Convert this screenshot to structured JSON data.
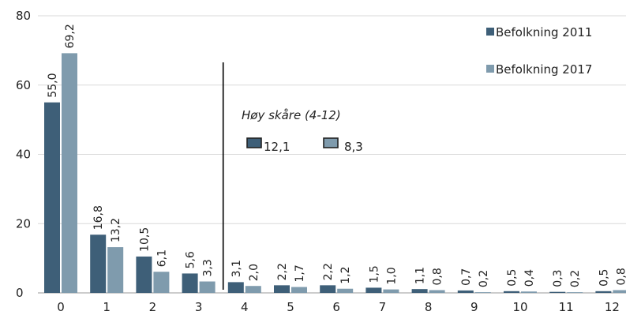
{
  "chart_data": {
    "type": "bar",
    "title": "",
    "xlabel": "",
    "ylabel": "",
    "ylim": [
      0,
      80
    ],
    "yticks": [
      0,
      20,
      40,
      60,
      80
    ],
    "grid": true,
    "legend_position": "top-right",
    "categories": [
      "0",
      "1",
      "2",
      "3",
      "4",
      "5",
      "6",
      "7",
      "8",
      "9",
      "10",
      "11",
      "12"
    ],
    "series": [
      {
        "name": "Befolkning 2011",
        "color": "#3e5f78",
        "values": [
          55.0,
          16.8,
          10.5,
          5.6,
          3.1,
          2.2,
          2.2,
          1.5,
          1.1,
          0.7,
          0.5,
          0.3,
          0.5
        ],
        "labels": [
          "55,0",
          "16,8",
          "10,5",
          "5,6",
          "3,1",
          "2,2",
          "2,2",
          "1,5",
          "1,1",
          "0,7",
          "0,5",
          "0,3",
          "0,5"
        ]
      },
      {
        "name": "Befolkning 2017",
        "color": "#7f9bad",
        "values": [
          69.2,
          13.2,
          6.1,
          3.3,
          2.0,
          1.7,
          1.2,
          1.0,
          0.8,
          0.2,
          0.4,
          0.2,
          0.8
        ],
        "labels": [
          "69,2",
          "13,2",
          "6,1",
          "3,3",
          "2,0",
          "1,7",
          "1,2",
          "1,0",
          "0,8",
          "0,2",
          "0,4",
          "0,2",
          "0,8"
        ]
      }
    ],
    "annotation": {
      "text": "Høy skåre (4-12)",
      "divider_before_category": "4",
      "values": [
        {
          "series": "Befolkning 2011",
          "label": "12,1"
        },
        {
          "series": "Befolkning 2017",
          "label": "8,3"
        }
      ]
    }
  }
}
